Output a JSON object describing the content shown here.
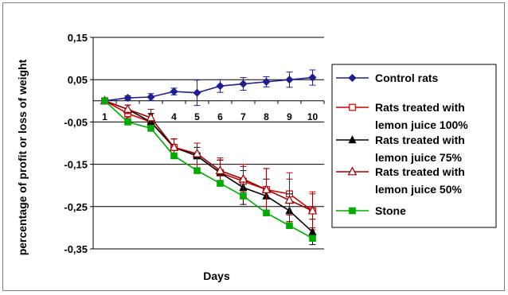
{
  "chart_data": {
    "type": "line",
    "title": "",
    "xlabel": "Days",
    "ylabel": "percentage of profit or loss of weight",
    "ylim": [
      -0.35,
      0.15
    ],
    "y_ticks": [
      "0,15",
      "0,05",
      "-0,05",
      "-0,15",
      "-0,25",
      "-0,35"
    ],
    "y_tick_values": [
      0.15,
      0.05,
      -0.05,
      -0.15,
      -0.25,
      -0.35
    ],
    "categories": [
      "1",
      "2",
      "3",
      "4",
      "5",
      "6",
      "7",
      "8",
      "9",
      "10"
    ],
    "grid": true,
    "legend_position": "right",
    "series": [
      {
        "name": "Control rats",
        "color": "#1f1f8f",
        "marker": "diamond",
        "values": [
          0,
          0.007,
          0.009,
          0.022,
          0.019,
          0.035,
          0.04,
          0.045,
          0.05,
          0.055
        ],
        "errors": [
          0.004,
          0.005,
          0.008,
          0.008,
          0.03,
          0.015,
          0.015,
          0.012,
          0.018,
          0.018
        ]
      },
      {
        "name": "Rats treated with lemon juice 100%",
        "color": "#cc0000",
        "marker": "square-open",
        "values": [
          0,
          -0.03,
          -0.05,
          -0.11,
          -0.13,
          -0.17,
          -0.19,
          -0.21,
          -0.22,
          -0.26
        ],
        "errors": [
          0.005,
          0.01,
          0.02,
          0.02,
          0.03,
          0.03,
          0.04,
          0.05,
          0.05,
          0.045
        ]
      },
      {
        "name": "Rats treated with lemon juice 75%",
        "color": "#000000",
        "marker": "triangle",
        "values": [
          0,
          -0.02,
          -0.05,
          -0.11,
          -0.13,
          -0.17,
          -0.205,
          -0.225,
          -0.26,
          -0.31
        ],
        "errors": [
          0.005,
          0.01,
          0.02,
          0.02,
          0.02,
          0.03,
          0.04,
          0.04,
          0.04,
          0.03
        ]
      },
      {
        "name": "Rats treated with lemon juice 50%",
        "color": "#990000",
        "marker": "triangle-open",
        "values": [
          0,
          -0.02,
          -0.04,
          -0.11,
          -0.125,
          -0.165,
          -0.185,
          -0.21,
          -0.235,
          -0.26
        ],
        "errors": [
          0.005,
          0.01,
          0.02,
          0.02,
          0.025,
          0.03,
          0.03,
          0.05,
          0.05,
          0.04
        ]
      },
      {
        "name": "Stone",
        "color": "#00aa00",
        "marker": "square",
        "values": [
          0,
          -0.05,
          -0.065,
          -0.13,
          -0.165,
          -0.195,
          -0.225,
          -0.265,
          -0.295,
          -0.325
        ],
        "errors": [
          0.004,
          0.005,
          0.005,
          0.005,
          0.005,
          0.005,
          0.005,
          0.005,
          0.005,
          0.005
        ]
      }
    ]
  }
}
